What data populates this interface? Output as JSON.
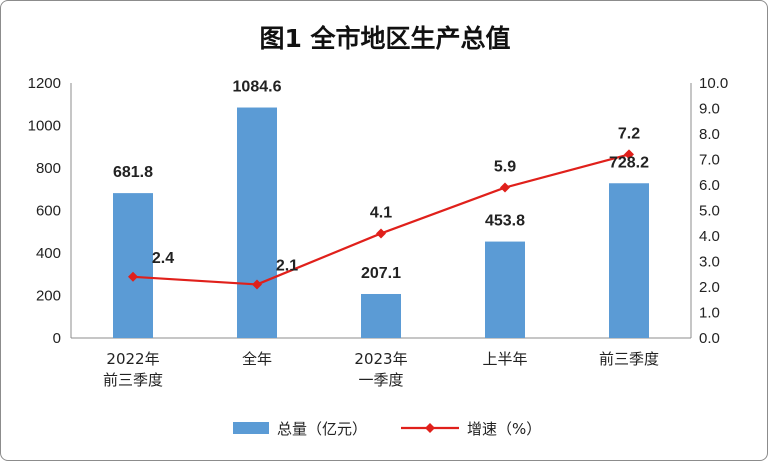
{
  "chart_data": {
    "type": "bar",
    "title": "图1 全市地区生产总值",
    "categories": [
      [
        "2022年",
        "前三季度"
      ],
      [
        "全年"
      ],
      [
        "2023年",
        "一季度"
      ],
      [
        "上半年"
      ],
      [
        "前三季度"
      ]
    ],
    "series": [
      {
        "name": "总量（亿元）",
        "type": "bar",
        "axis": "left",
        "color": "#5b9bd5",
        "values": [
          681.8,
          1084.6,
          207.1,
          453.8,
          728.2
        ],
        "labels": [
          "681.8",
          "1084.6",
          "207.1",
          "453.8",
          "728.2"
        ]
      },
      {
        "name": "增速（%）",
        "type": "line",
        "axis": "right",
        "color": "#e0201b",
        "values": [
          2.4,
          2.1,
          4.1,
          5.9,
          7.2
        ],
        "labels": [
          "2.4",
          "2.1",
          "4.1",
          "5.9",
          "7.2"
        ]
      }
    ],
    "y_left": {
      "min": 0,
      "max": 1200,
      "ticks": [
        "0",
        "200",
        "400",
        "600",
        "800",
        "1000",
        "1200"
      ]
    },
    "y_right": {
      "min": 0,
      "max": 10,
      "ticks": [
        "0.0",
        "1.0",
        "2.0",
        "3.0",
        "4.0",
        "5.0",
        "6.0",
        "7.0",
        "8.0",
        "9.0",
        "10.0"
      ]
    },
    "grid": false,
    "legend_position": "bottom"
  }
}
